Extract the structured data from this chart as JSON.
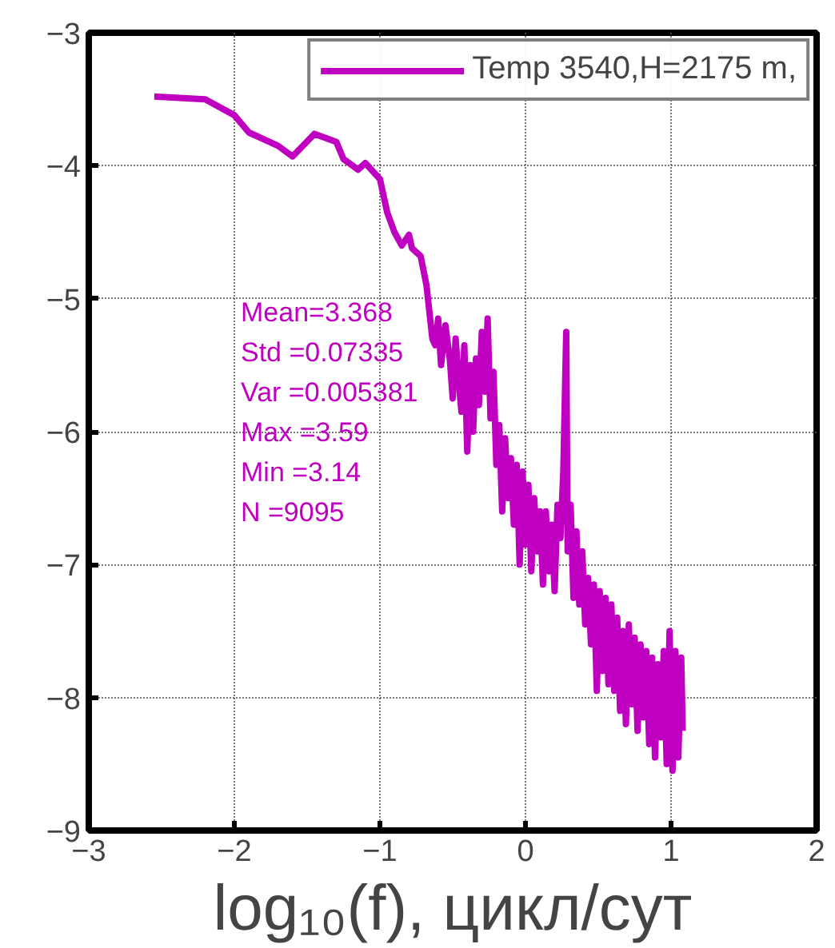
{
  "chart_data": {
    "type": "line",
    "xlabel": "log₁₀(f), цикл/сут",
    "xlim": [
      -3,
      2
    ],
    "ylim": [
      -9,
      -3
    ],
    "xticks": [
      -3,
      -2,
      -1,
      0,
      1,
      2
    ],
    "yticks": [
      -9,
      -8,
      -7,
      -6,
      -5,
      -4,
      -3
    ],
    "grid": true,
    "legend": "top right",
    "line_style": "solid",
    "annotations": [
      "Mean=3.368",
      "Std =0.07335",
      "Var =0.005381",
      "Max =3.59",
      "Min =3.14",
      "N =9095"
    ],
    "series": [
      {
        "name": "Temp 3540,H=2175 m,",
        "color": "#c000c0",
        "x": [
          -2.55,
          -2.2,
          -2.0,
          -1.9,
          -1.7,
          -1.6,
          -1.45,
          -1.3,
          -1.25,
          -1.15,
          -1.1,
          -1.0,
          -0.95,
          -0.9,
          -0.85,
          -0.8,
          -0.78,
          -0.72,
          -0.68,
          -0.64,
          -0.62,
          -0.6,
          -0.58,
          -0.55,
          -0.52,
          -0.5,
          -0.48,
          -0.46,
          -0.44,
          -0.42,
          -0.4,
          -0.38,
          -0.36,
          -0.34,
          -0.32,
          -0.3,
          -0.28,
          -0.26,
          -0.24,
          -0.22,
          -0.2,
          -0.18,
          -0.16,
          -0.14,
          -0.12,
          -0.1,
          -0.08,
          -0.06,
          -0.04,
          -0.02,
          0.0,
          0.02,
          0.04,
          0.06,
          0.08,
          0.1,
          0.12,
          0.14,
          0.16,
          0.18,
          0.2,
          0.22,
          0.24,
          0.26,
          0.28,
          0.29,
          0.31,
          0.33,
          0.35,
          0.37,
          0.39,
          0.41,
          0.43,
          0.45,
          0.47,
          0.49,
          0.51,
          0.53,
          0.55,
          0.57,
          0.59,
          0.61,
          0.63,
          0.65,
          0.67,
          0.69,
          0.71,
          0.73,
          0.75,
          0.77,
          0.79,
          0.81,
          0.83,
          0.85,
          0.87,
          0.89,
          0.91,
          0.93,
          0.95,
          0.97,
          0.99,
          1.01,
          1.03,
          1.05,
          1.07,
          1.08
        ],
        "values": [
          -3.48,
          -3.5,
          -3.62,
          -3.75,
          -3.85,
          -3.93,
          -3.76,
          -3.82,
          -3.95,
          -4.03,
          -3.98,
          -4.1,
          -4.35,
          -4.5,
          -4.6,
          -4.52,
          -4.62,
          -4.68,
          -4.9,
          -5.3,
          -5.35,
          -5.15,
          -5.5,
          -5.2,
          -5.45,
          -5.75,
          -5.3,
          -5.6,
          -5.85,
          -5.35,
          -6.15,
          -5.5,
          -6.0,
          -5.45,
          -5.8,
          -5.25,
          -5.7,
          -5.15,
          -5.9,
          -5.55,
          -6.25,
          -5.95,
          -6.6,
          -6.05,
          -6.5,
          -6.2,
          -6.7,
          -6.25,
          -7.0,
          -6.3,
          -6.85,
          -6.4,
          -7.05,
          -6.5,
          -6.9,
          -6.6,
          -7.15,
          -6.6,
          -7.05,
          -6.7,
          -7.2,
          -6.55,
          -6.8,
          -6.3,
          -5.25,
          -6.9,
          -6.55,
          -7.25,
          -6.75,
          -7.3,
          -6.9,
          -7.45,
          -7.1,
          -7.6,
          -7.15,
          -7.95,
          -7.2,
          -7.8,
          -7.25,
          -7.9,
          -7.3,
          -7.95,
          -7.4,
          -8.1,
          -7.5,
          -8.2,
          -7.45,
          -8.05,
          -7.55,
          -8.25,
          -7.6,
          -8.15,
          -7.65,
          -8.35,
          -7.7,
          -8.45,
          -7.75,
          -8.3,
          -7.65,
          -8.5,
          -7.5,
          -8.55,
          -7.65,
          -8.45,
          -7.7,
          -8.25
        ]
      }
    ]
  }
}
